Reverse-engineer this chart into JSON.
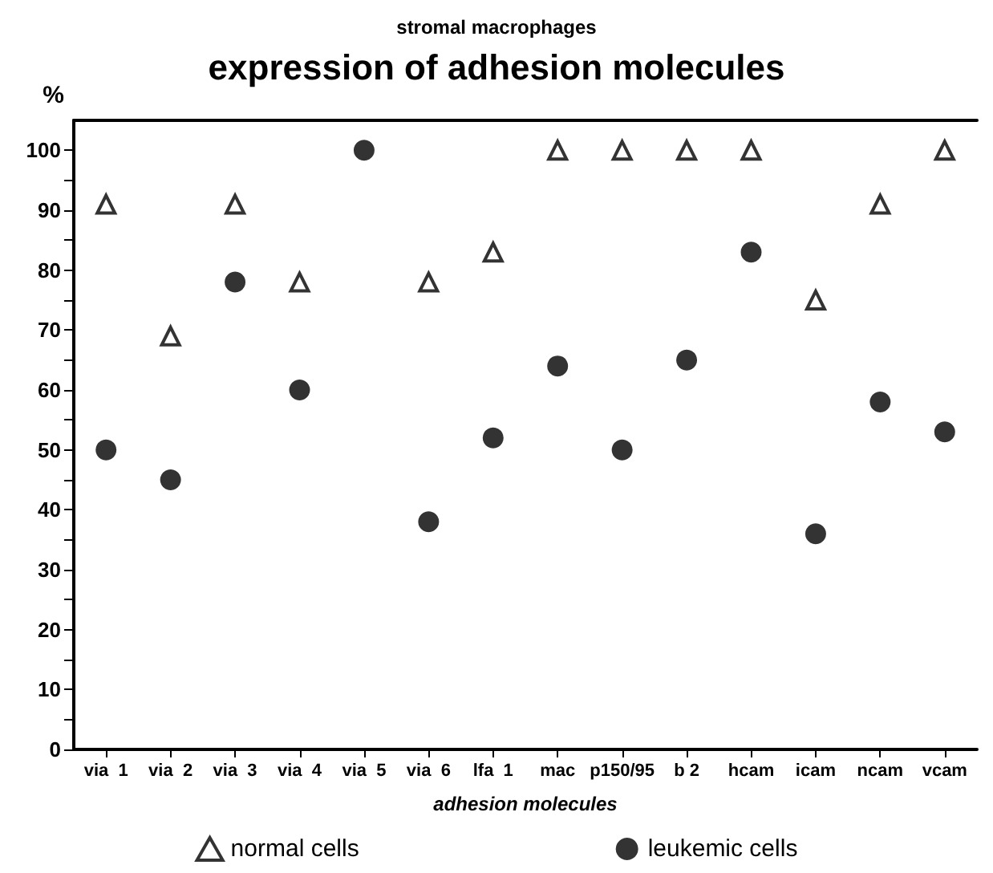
{
  "chart_data": {
    "type": "scatter",
    "subtitle": "stromal macrophages",
    "title": "expression of adhesion molecules",
    "xlabel": "adhesion molecules",
    "ylabel": "%",
    "categories": [
      "via  1",
      "via  2",
      "via  3",
      "via  4",
      "via  5",
      "via  6",
      "lfa  1",
      "mac",
      "p150/95",
      "b 2",
      "hcam",
      "icam",
      "ncam",
      "vcam"
    ],
    "series": [
      {
        "name": "normal cells",
        "color": "#000000",
        "marker": "triangle",
        "values": [
          91,
          69,
          91,
          78,
          null,
          78,
          83,
          100,
          100,
          100,
          100,
          75,
          91,
          100
        ]
      },
      {
        "name": "leukemic cells",
        "color": "#000000",
        "marker": "circle",
        "values": [
          50,
          45,
          78,
          60,
          100,
          38,
          52,
          64,
          50,
          65,
          83,
          36,
          58,
          53
        ]
      }
    ],
    "ylim": [
      0,
      105
    ],
    "yticks": [
      0,
      10,
      20,
      30,
      40,
      50,
      60,
      70,
      80,
      90,
      100
    ],
    "grid": false,
    "legend": "bottom"
  }
}
